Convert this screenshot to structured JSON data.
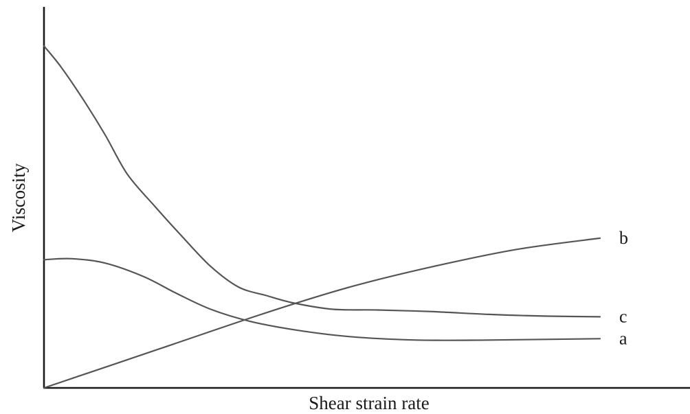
{
  "chart_data": {
    "type": "line",
    "title": "",
    "xlabel": "Shear strain rate",
    "ylabel": "Viscosity",
    "grid": false,
    "legend": "none",
    "ticks": false,
    "xlim": [
      0,
      100
    ],
    "ylim": [
      0,
      100
    ],
    "series": [
      {
        "name": "a",
        "color": "#555555",
        "x": [
          0,
          5,
          11,
          18,
          24,
          30,
          37,
          45,
          55,
          67,
          80,
          100
        ],
        "y": [
          37.5,
          37.8,
          36.5,
          32.5,
          27.5,
          23,
          19.5,
          17,
          15,
          14,
          14,
          14.4
        ]
      },
      {
        "name": "b",
        "color": "#555555",
        "x": [
          0,
          20,
          40,
          55,
          70,
          85,
          100
        ],
        "y": [
          0,
          11,
          22,
          29.5,
          35.5,
          40.5,
          43.8
        ]
      },
      {
        "name": "c",
        "color": "#555555",
        "x": [
          0,
          3,
          7,
          11,
          15,
          20,
          25,
          30,
          35,
          40,
          45,
          52,
          60,
          70,
          80,
          90,
          100
        ],
        "y": [
          100,
          94,
          84.5,
          74,
          62.5,
          53,
          44,
          35.5,
          29.5,
          27,
          24.8,
          23,
          22.8,
          22.3,
          21.5,
          21,
          20.8
        ]
      }
    ]
  }
}
